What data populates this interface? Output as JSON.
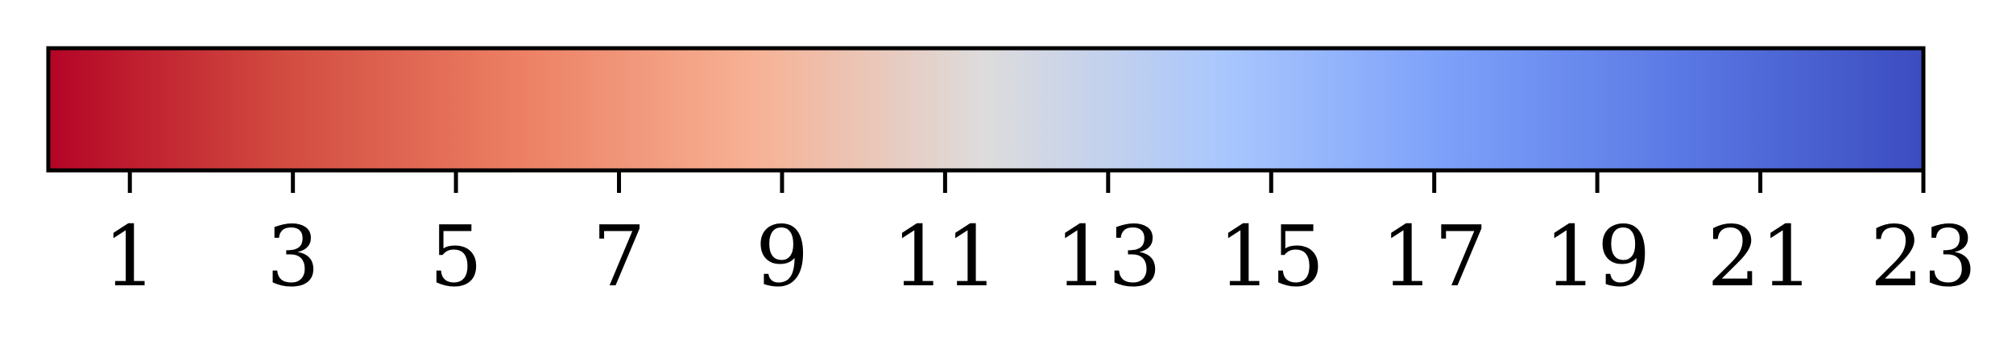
{
  "chart_data": {
    "type": "heatmap",
    "subtype": "colorbar",
    "orientation": "horizontal",
    "colormap": "coolwarm_r",
    "range": [
      0,
      23
    ],
    "ticks": [
      1,
      3,
      5,
      7,
      9,
      11,
      13,
      15,
      17,
      19,
      21,
      23
    ],
    "tick_labels": [
      "1",
      "3",
      "5",
      "7",
      "9",
      "11",
      "13",
      "15",
      "17",
      "19",
      "21",
      "23"
    ],
    "color_stops": [
      {
        "value": 0,
        "color": "#b40426"
      },
      {
        "value": 2.875,
        "color": "#d24b40"
      },
      {
        "value": 5.75,
        "color": "#ec7f63"
      },
      {
        "value": 8.625,
        "color": "#f7b194"
      },
      {
        "value": 11.5,
        "color": "#dddcdc"
      },
      {
        "value": 14.375,
        "color": "#aac7fd"
      },
      {
        "value": 17.25,
        "color": "#7b9ff9"
      },
      {
        "value": 20.125,
        "color": "#5977e3"
      },
      {
        "value": 23,
        "color": "#3b4cc0"
      }
    ],
    "title": "",
    "xlabel": "",
    "ylabel": ""
  }
}
